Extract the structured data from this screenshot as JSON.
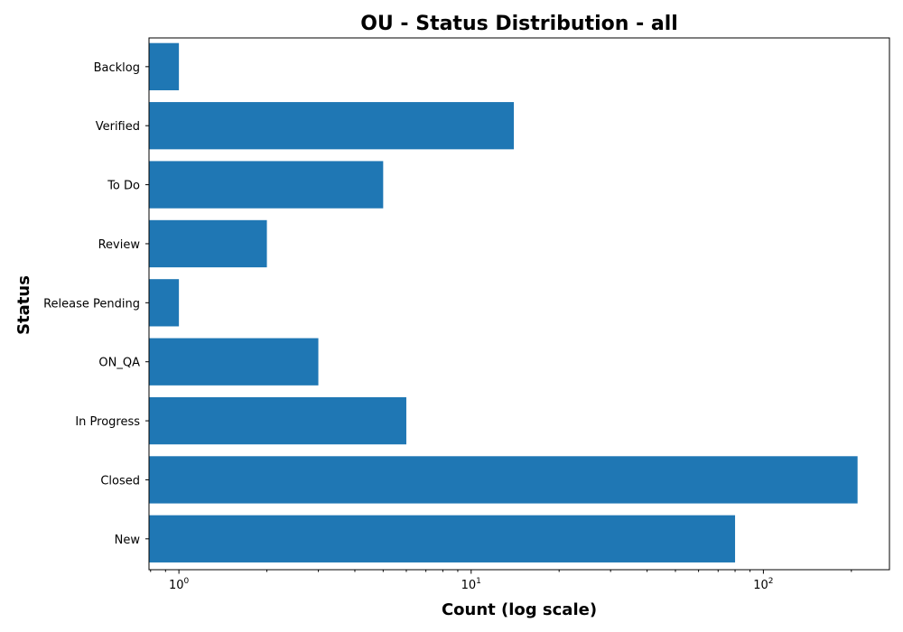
{
  "chart_data": {
    "type": "bar",
    "orientation": "horizontal",
    "title": "OU - Status Distribution - all",
    "xlabel": "Count (log scale)",
    "ylabel": "Status",
    "x_scale": "log",
    "xlim": [
      0.79,
      270
    ],
    "x_ticks": [
      {
        "value": 1,
        "base": "10",
        "exp": "0"
      },
      {
        "value": 10,
        "base": "10",
        "exp": "1"
      },
      {
        "value": 100,
        "base": "10",
        "exp": "2"
      }
    ],
    "categories": [
      "New",
      "Closed",
      "In Progress",
      "ON_QA",
      "Release Pending",
      "Review",
      "To Do",
      "Verified",
      "Backlog"
    ],
    "values": [
      80,
      210,
      6,
      3,
      1,
      2,
      5,
      14,
      1
    ],
    "bar_color": "#1f77b4",
    "grid": false,
    "legend": "none"
  }
}
